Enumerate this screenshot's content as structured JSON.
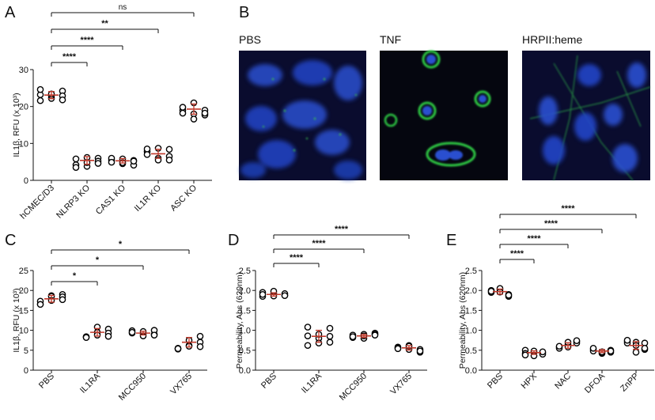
{
  "chart_data": [
    {
      "panel": "A",
      "type": "scatter",
      "ylabel": "IL1β, RFU (x 10³)",
      "ylim": [
        0,
        30
      ],
      "yticks": [
        0,
        10,
        20,
        30
      ],
      "categories": [
        "hCMEC/D3",
        "NLRP3 KO",
        "CAS1 KO",
        "IL1R KO",
        "ASC KO"
      ],
      "groups": [
        {
          "category": "hCMEC/D3",
          "mean": 23.1,
          "reps": [
            [
              23.2,
              24.6,
              21.6
            ],
            [
              22.2,
              22.9,
              23.4
            ],
            [
              24.2,
              22.9,
              21.8
            ]
          ]
        },
        {
          "category": "NLRP3 KO",
          "mean": 5.4,
          "reps": [
            [
              5.8,
              4.2,
              3.5
            ],
            [
              6.2,
              3.8,
              4.8
            ],
            [
              6.0,
              5.2,
              4.6
            ]
          ]
        },
        {
          "category": "CAS1 KO",
          "mean": 5.3,
          "reps": [
            [
              5.5,
              6.0,
              4.9
            ],
            [
              5.8,
              4.5,
              4.8
            ],
            [
              5.4,
              4.1,
              5.2
            ]
          ]
        },
        {
          "category": "IL1R KO",
          "mean": 7.2,
          "reps": [
            [
              7.8,
              7.0,
              8.5
            ],
            [
              8.7,
              6.0,
              5.5
            ],
            [
              8.4,
              6.5,
              5.5
            ]
          ]
        },
        {
          "category": "ASC KO",
          "mean": 19.3,
          "reps": [
            [
              19.0,
              19.8,
              18.2
            ],
            [
              21.0,
              18.0,
              16.6
            ],
            [
              17.7,
              19.0,
              18.2
            ]
          ]
        }
      ],
      "comparisons": [
        {
          "from": "hCMEC/D3",
          "to": "NLRP3 KO",
          "label": "****"
        },
        {
          "from": "hCMEC/D3",
          "to": "CAS1 KO",
          "label": "****"
        },
        {
          "from": "hCMEC/D3",
          "to": "IL1R KO",
          "label": "**"
        },
        {
          "from": "hCMEC/D3",
          "to": "ASC KO",
          "label": "ns"
        }
      ]
    },
    {
      "panel": "C",
      "type": "scatter",
      "ylabel": "IL1β, RFU (x 10³)",
      "ylim": [
        0,
        25
      ],
      "yticks": [
        0,
        5,
        10,
        15,
        20,
        25
      ],
      "categories": [
        "PBS",
        "IL1RA",
        "MCC950",
        "VX765"
      ],
      "groups": [
        {
          "category": "PBS",
          "mean": 17.9,
          "reps": [
            [
              16.6,
              17.3,
              16.5
            ],
            [
              18.7,
              18.5,
              17.5
            ],
            [
              19.0,
              18.4,
              17.7
            ]
          ]
        },
        {
          "category": "IL1RA",
          "mean": 9.5,
          "reps": [
            [
              8.3,
              8.4,
              8.2
            ],
            [
              10.8,
              9.5,
              8.8
            ],
            [
              10.3,
              9.3,
              8.5
            ]
          ]
        },
        {
          "category": "MCC950",
          "mean": 9.3,
          "reps": [
            [
              9.9,
              9.3,
              9.5
            ],
            [
              9.0,
              8.6,
              9.7
            ],
            [
              9.0,
              10.0,
              8.8
            ]
          ]
        },
        {
          "category": "VX765",
          "mean": 7.0,
          "reps": [
            [
              5.3,
              5.5,
              5.4
            ],
            [
              6.2,
              7.5,
              6.0
            ],
            [
              8.5,
              7.0,
              5.9
            ]
          ]
        }
      ],
      "comparisons": [
        {
          "from": "PBS",
          "to": "IL1RA",
          "label": "*"
        },
        {
          "from": "PBS",
          "to": "MCC950",
          "label": "*"
        },
        {
          "from": "PBS",
          "to": "VX765",
          "label": "*"
        }
      ]
    },
    {
      "panel": "D",
      "type": "scatter",
      "ylabel": "Permeability, Abs (620nm)",
      "ylim": [
        0,
        2.5
      ],
      "yticks": [
        "0.0",
        "0.5",
        "1.0",
        "1.5",
        "2.0",
        "2.5"
      ],
      "categories": [
        "PBS",
        "IL1RA",
        "MCC950",
        "VX765"
      ],
      "groups": [
        {
          "category": "PBS",
          "mean": 1.9,
          "reps": [
            [
              1.85,
              1.95,
              1.9
            ],
            [
              1.93,
              1.98,
              1.86
            ],
            [
              1.88,
              1.92,
              1.87
            ]
          ]
        },
        {
          "category": "IL1RA",
          "mean": 0.85,
          "reps": [
            [
              1.08,
              0.86,
              0.62
            ],
            [
              0.8,
              0.68,
              0.9
            ],
            [
              1.05,
              0.85,
              0.7
            ]
          ]
        },
        {
          "category": "MCC950",
          "mean": 0.86,
          "reps": [
            [
              0.82,
              0.88,
              0.84
            ],
            [
              0.9,
              0.8,
              0.86
            ],
            [
              0.93,
              0.9,
              0.88
            ]
          ]
        },
        {
          "category": "VX765",
          "mean": 0.56,
          "reps": [
            [
              0.58,
              0.56,
              0.54
            ],
            [
              0.62,
              0.52,
              0.6
            ],
            [
              0.52,
              0.45,
              0.48
            ]
          ]
        }
      ],
      "comparisons": [
        {
          "from": "PBS",
          "to": "IL1RA",
          "label": "****"
        },
        {
          "from": "PBS",
          "to": "MCC950",
          "label": "****"
        },
        {
          "from": "PBS",
          "to": "VX765",
          "label": "****"
        }
      ]
    },
    {
      "panel": "E",
      "type": "scatter",
      "ylabel": "Permeability, Abs (620nm)",
      "ylim": [
        0,
        2.5
      ],
      "yticks": [
        "0.0",
        "0.5",
        "1.0",
        "1.5",
        "2.0",
        "2.5"
      ],
      "categories": [
        "PBS",
        "HPX",
        "NAC",
        "DFOA",
        "ZnPP"
      ],
      "groups": [
        {
          "category": "PBS",
          "mean": 1.97,
          "reps": [
            [
              1.95,
              2.0,
              1.98
            ],
            [
              2.02,
              2.05,
              1.96
            ],
            [
              1.9,
              1.85,
              1.88
            ]
          ]
        },
        {
          "category": "HPX",
          "mean": 0.44,
          "reps": [
            [
              0.5,
              0.42,
              0.38
            ],
            [
              0.45,
              0.48,
              0.36
            ],
            [
              0.44,
              0.4,
              0.46
            ]
          ]
        },
        {
          "category": "NAC",
          "mean": 0.62,
          "reps": [
            [
              0.58,
              0.55,
              0.6
            ],
            [
              0.65,
              0.58,
              0.7
            ],
            [
              0.72,
              0.68,
              0.74
            ]
          ]
        },
        {
          "category": "DFOA",
          "mean": 0.48,
          "reps": [
            [
              0.52,
              0.48,
              0.55
            ],
            [
              0.42,
              0.44,
              0.46
            ],
            [
              0.45,
              0.5,
              0.48
            ]
          ]
        },
        {
          "category": "ZnPP",
          "mean": 0.62,
          "reps": [
            [
              0.72,
              0.68,
              0.75
            ],
            [
              0.7,
              0.45,
              0.62
            ],
            [
              0.68,
              0.52,
              0.55
            ]
          ]
        }
      ],
      "comparisons": [
        {
          "from": "PBS",
          "to": "HPX",
          "label": "****"
        },
        {
          "from": "PBS",
          "to": "NAC",
          "label": "****"
        },
        {
          "from": "PBS",
          "to": "DFOA",
          "label": "****"
        },
        {
          "from": "PBS",
          "to": "ZnPP",
          "label": "****"
        }
      ]
    }
  ],
  "panel_b": {
    "images": [
      {
        "label": "PBS"
      },
      {
        "label": "TNF"
      },
      {
        "label": "HRPII:heme"
      }
    ]
  },
  "panel_letters": {
    "a": "A",
    "b": "B",
    "c": "C",
    "d": "D",
    "e": "E"
  },
  "colors": {
    "marker": "#000000",
    "mean": "#c0392b",
    "image_bg": "#0a0c2e",
    "nucleus": "#2244cc",
    "membrane": "#22c040"
  }
}
